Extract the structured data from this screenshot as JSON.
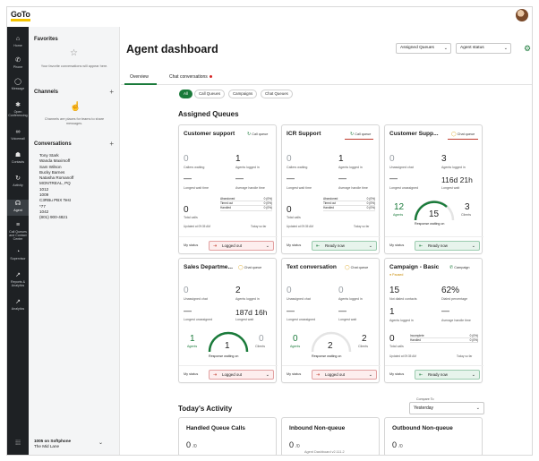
{
  "app": {
    "logo": "GoTo",
    "brand_color": "#f5c400",
    "accent": "#1a7a3a"
  },
  "rail": [
    {
      "label": "Home",
      "icon": "home-icon"
    },
    {
      "label": "Phone",
      "icon": "phone-icon"
    },
    {
      "label": "Message",
      "icon": "message-icon"
    },
    {
      "label": "Open Conferencing",
      "icon": "conferencing-icon"
    },
    {
      "label": "Voicemail",
      "icon": "voicemail-icon"
    },
    {
      "label": "Contacts",
      "icon": "contacts-icon"
    },
    {
      "label": "Activity",
      "icon": "activity-icon"
    },
    {
      "label": "Agent",
      "icon": "agent-icon"
    },
    {
      "label": "Call Queues and Contact Center",
      "icon": "queue-icon"
    },
    {
      "label": "Supervisor",
      "icon": "supervisor-icon"
    },
    {
      "label": "Reports & Analytics",
      "icon": "reports-icon"
    },
    {
      "label": "Analytics",
      "icon": "analytics-icon"
    }
  ],
  "sidebar": {
    "favorites_title": "Favorites",
    "favorites_note": "Your favorite conversations will appear here.",
    "channels_title": "Channels",
    "channels_note": "Channels are places for teams to share messages.",
    "conversations_title": "Conversations",
    "conversations": [
      "Tony Stark",
      "Wanda Maximoff",
      "Sam Wilson",
      "Bucky Barnes",
      "Natasha Romanoff",
      "MONTREAL, PQ",
      "1012",
      "1009",
      "C3RBu PBX Test",
      "*77",
      "1042",
      "(801) 900-4821"
    ],
    "footer_line1": "1005 on Softphone",
    "footer_line2": "The Mid Lane"
  },
  "header": {
    "title": "Agent dashboard",
    "dropdown1": "Assigned Queues",
    "dropdown2": "Agent status"
  },
  "tabs": [
    "Overview",
    "Chat conversations"
  ],
  "filters": [
    "All",
    "Call Queues",
    "Campaigns",
    "Chat Queues"
  ],
  "assigned_title": "Assigned Queues",
  "cards": [
    {
      "title": "Customer support",
      "tag": "Call queue",
      "m1v": "0",
      "m1l": "Callers waiting",
      "m2v": "1",
      "m2l": "Agents logged in",
      "m3v": "—",
      "m3l": "Longest wait time",
      "m4v": "—",
      "m4l": "Average handle time",
      "total": "0",
      "total_l": "Total calls",
      "rows": [
        [
          "Abandoned",
          "0 (0%)"
        ],
        [
          "Timed out",
          "0 (0%)"
        ],
        [
          "Handled",
          "0 (0%)"
        ]
      ],
      "updated": "Updated at 09:35 AM",
      "today": "Today so far",
      "status_label": "My status",
      "status": "Logged out"
    },
    {
      "title": "ICR Support",
      "tag": "Call queue",
      "m1v": "0",
      "m1l": "Callers waiting",
      "m2v": "1",
      "m2l": "Agents logged in",
      "m3v": "—",
      "m3l": "Longest wait time",
      "m4v": "—",
      "m4l": "Average handle time",
      "total": "0",
      "total_l": "Total calls",
      "rows": [
        [
          "Abandoned",
          "0 (0%)"
        ],
        [
          "Timed out",
          "0 (0%)"
        ],
        [
          "Handled",
          "0 (0%)"
        ]
      ],
      "updated": "Updated at 09:35 AM",
      "today": "Today so far",
      "status_label": "My status",
      "status": "Ready now"
    },
    {
      "title": "Customer Supp...",
      "tag": "Chat queue",
      "m1v": "0",
      "m1l": "Unassigned chat",
      "m2v": "3",
      "m2l": "Agents logged in",
      "m3v": "—",
      "m3l": "Longest unassigned",
      "m4v": "116d 21h",
      "m4l": "Longest wait",
      "agents": "12",
      "agents_l": "Agents",
      "center": "15",
      "clients": "3",
      "clients_l": "Clients",
      "response": "Response waiting on",
      "status_label": "My status",
      "status": "Ready now"
    },
    {
      "title": "Sales Departme...",
      "tag": "Chat queue",
      "m1v": "0",
      "m1l": "Unassigned chat",
      "m2v": "2",
      "m2l": "Agents logged in",
      "m3v": "—",
      "m3l": "Longest unassigned",
      "m4v": "187d 16h",
      "m4l": "Longest wait",
      "agents": "1",
      "agents_l": "Agents",
      "center": "1",
      "clients": "0",
      "clients_l": "Clients",
      "response": "Response waiting on",
      "status_label": "My status",
      "status": "Logged out"
    },
    {
      "title": "Text conversation",
      "tag": "Chat queue",
      "m1v": "0",
      "m1l": "Unassigned chat",
      "m2v": "0",
      "m2l": "Agents logged in",
      "m3v": "—",
      "m3l": "Longest unassigned",
      "m4v": "—",
      "m4l": "Longest wait",
      "agents": "0",
      "agents_l": "Agents",
      "center": "2",
      "clients": "2",
      "clients_l": "Clients",
      "response": "Response waiting on",
      "status_label": "My status",
      "status": "Logged out"
    },
    {
      "title": "Campaign - Basic",
      "tag": "Campaign",
      "paused": "Paused",
      "m1v": "15",
      "m1l": "Not dialed contacts",
      "m2v": "62%",
      "m2l": "Dialed percentage",
      "m3v": "1",
      "m3l": "Agents logged in",
      "m4v": "—",
      "m4l": "Average handle time",
      "total": "0",
      "total_l": "Total calls",
      "rows": [
        [
          "Incomplete",
          "0 (0%)"
        ],
        [
          "Handled",
          "0 (0%)"
        ]
      ],
      "updated": "Updated at 09:35 AM",
      "today": "Today so far",
      "status_label": "My status",
      "status": "Ready now"
    }
  ],
  "activity": {
    "title": "Today's Activity",
    "compare_label": "Compare To",
    "compare_value": "Yesterday",
    "cards": [
      {
        "title": "Handled Queue Calls",
        "value": "0",
        "sub": "/0"
      },
      {
        "title": "Inbound Non-queue",
        "value": "0",
        "sub": "/0"
      },
      {
        "title": "Outbound Non-queue",
        "value": "0",
        "sub": "/0"
      }
    ]
  },
  "version": "Agent Dashboard v2.111.2"
}
